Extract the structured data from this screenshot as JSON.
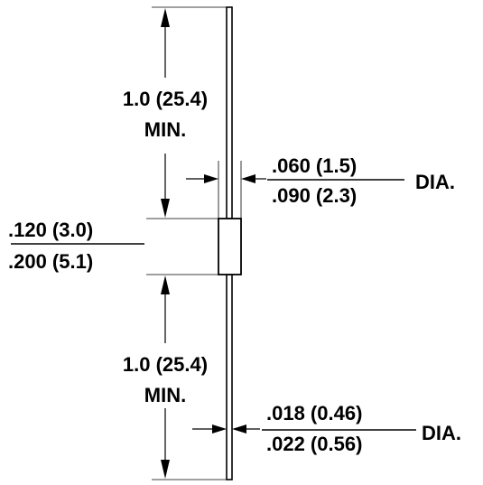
{
  "lead_length_top": {
    "value": "1.0 (25.4)",
    "qualifier": "MIN."
  },
  "lead_length_bottom": {
    "value": "1.0 (25.4)",
    "qualifier": "MIN."
  },
  "body_diameter": {
    "min": ".060 (1.5)",
    "max": ".090 (2.3)",
    "suffix": "DIA."
  },
  "body_length": {
    "min": ".120 (3.0)",
    "max": ".200 (5.1)"
  },
  "lead_diameter": {
    "min": ".018 (0.46)",
    "max": ".022 (0.56)",
    "suffix": "DIA."
  }
}
